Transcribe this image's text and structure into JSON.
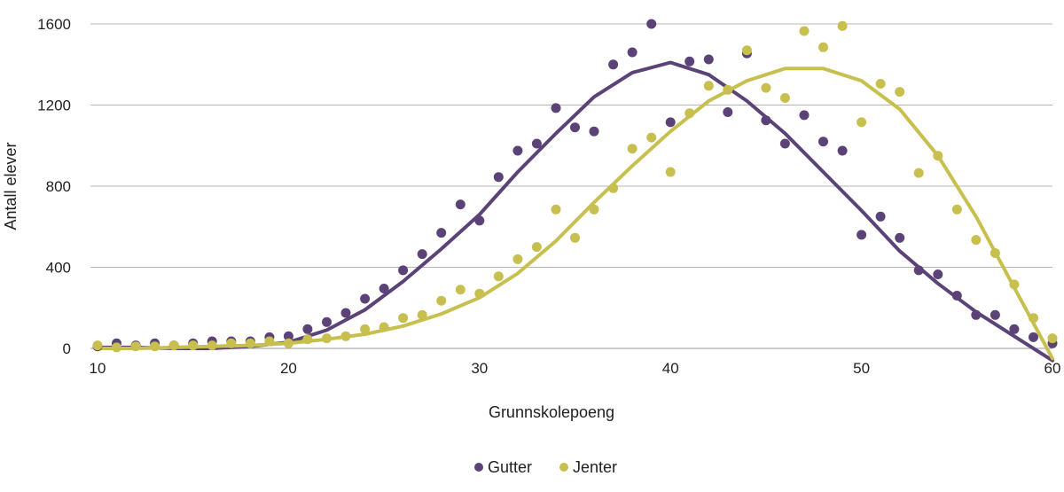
{
  "chart_data": {
    "type": "scatter",
    "title": "",
    "xlabel": "Grunnskolepoeng",
    "ylabel": "Antall elever",
    "xlim": [
      10,
      60
    ],
    "ylim": [
      0,
      1600
    ],
    "xticks": [
      "10",
      "20",
      "30",
      "40",
      "50",
      "60"
    ],
    "yticks": [
      "0",
      "400",
      "800",
      "1200",
      "1600"
    ],
    "grid": "horizontal",
    "legend_position": "bottom",
    "series": [
      {
        "name": "Gutter",
        "color": "#5B4378",
        "points": {
          "x": [
            10,
            11,
            12,
            13,
            14,
            15,
            16,
            17,
            18,
            19,
            20,
            21,
            22,
            23,
            24,
            25,
            26,
            27,
            28,
            29,
            30,
            31,
            32,
            33,
            34,
            35,
            36,
            37,
            38,
            39,
            40,
            41,
            42,
            43,
            44,
            45,
            46,
            47,
            48,
            49,
            50,
            51,
            52,
            53,
            54,
            55,
            56,
            57,
            58,
            59,
            60
          ],
          "y": [
            10,
            25,
            15,
            25,
            15,
            25,
            35,
            35,
            35,
            55,
            60,
            95,
            130,
            175,
            245,
            295,
            385,
            465,
            570,
            710,
            630,
            845,
            975,
            1010,
            1185,
            1090,
            1070,
            1400,
            1460,
            1600,
            1115,
            1415,
            1425,
            1165,
            1455,
            1125,
            1010,
            1150,
            1020,
            975,
            560,
            650,
            545,
            385,
            365,
            260,
            165,
            165,
            95,
            55,
            25
          ]
        },
        "trend": {
          "x": [
            10,
            12,
            14,
            16,
            18,
            20,
            22,
            24,
            26,
            28,
            30,
            32,
            34,
            36,
            38,
            40,
            42,
            44,
            46,
            48,
            50,
            52,
            54,
            56,
            58,
            60
          ],
          "y": [
            5,
            5,
            0,
            0,
            10,
            30,
            90,
            190,
            330,
            490,
            660,
            870,
            1060,
            1240,
            1360,
            1410,
            1350,
            1220,
            1060,
            870,
            680,
            480,
            320,
            180,
            60,
            -60
          ]
        }
      },
      {
        "name": "Jenter",
        "color": "#C7C04F",
        "points": {
          "x": [
            10,
            11,
            12,
            13,
            14,
            15,
            16,
            17,
            18,
            19,
            20,
            21,
            22,
            23,
            24,
            25,
            26,
            27,
            28,
            29,
            30,
            31,
            32,
            33,
            34,
            35,
            36,
            37,
            38,
            39,
            40,
            41,
            42,
            43,
            44,
            45,
            46,
            47,
            48,
            49,
            50,
            51,
            52,
            53,
            54,
            55,
            56,
            57,
            58,
            59,
            60
          ],
          "y": [
            15,
            5,
            10,
            10,
            15,
            15,
            15,
            25,
            25,
            35,
            25,
            45,
            50,
            60,
            95,
            105,
            150,
            165,
            235,
            290,
            270,
            355,
            440,
            500,
            685,
            545,
            685,
            790,
            985,
            1040,
            870,
            1160,
            1295,
            1275,
            1470,
            1285,
            1235,
            1565,
            1485,
            1590,
            1115,
            1305,
            1265,
            865,
            950,
            685,
            535,
            470,
            315,
            150,
            50
          ]
        },
        "trend": {
          "x": [
            10,
            12,
            14,
            16,
            18,
            20,
            22,
            24,
            26,
            28,
            30,
            32,
            34,
            36,
            38,
            40,
            42,
            44,
            46,
            48,
            50,
            52,
            54,
            56,
            58,
            60
          ],
          "y": [
            0,
            0,
            5,
            10,
            15,
            25,
            45,
            70,
            110,
            170,
            250,
            370,
            530,
            720,
            900,
            1070,
            1220,
            1320,
            1380,
            1380,
            1320,
            1180,
            950,
            650,
            300,
            -50
          ]
        }
      }
    ]
  }
}
